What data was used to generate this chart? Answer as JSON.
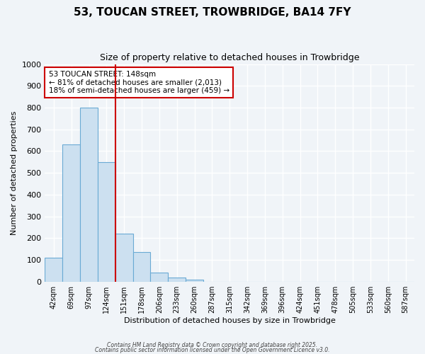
{
  "title": "53, TOUCAN STREET, TROWBRIDGE, BA14 7FY",
  "subtitle": "Size of property relative to detached houses in Trowbridge",
  "xlabel": "Distribution of detached houses by size in Trowbridge",
  "ylabel": "Number of detached properties",
  "categories": [
    "42sqm",
    "69sqm",
    "97sqm",
    "124sqm",
    "151sqm",
    "178sqm",
    "206sqm",
    "233sqm",
    "260sqm",
    "287sqm",
    "315sqm",
    "342sqm",
    "369sqm",
    "396sqm",
    "424sqm",
    "451sqm",
    "478sqm",
    "505sqm",
    "533sqm",
    "560sqm",
    "587sqm"
  ],
  "values": [
    110,
    630,
    800,
    550,
    220,
    135,
    42,
    18,
    10,
    0,
    0,
    0,
    0,
    0,
    0,
    0,
    0,
    0,
    0,
    0,
    0
  ],
  "bar_color": "#cce0f0",
  "bar_edge_color": "#6aaad4",
  "red_line_color": "#cc0000",
  "red_line_x": 3.5,
  "annotation_text": "53 TOUCAN STREET: 148sqm\n← 81% of detached houses are smaller (2,013)\n18% of semi-detached houses are larger (459) →",
  "annotation_box_facecolor": "#ffffff",
  "annotation_box_edgecolor": "#cc0000",
  "ylim": [
    0,
    1000
  ],
  "yticks": [
    0,
    100,
    200,
    300,
    400,
    500,
    600,
    700,
    800,
    900,
    1000
  ],
  "bg_color": "#f0f4f8",
  "plot_bg_color": "#f0f4f8",
  "grid_color": "#ffffff",
  "footer_line1": "Contains HM Land Registry data © Crown copyright and database right 2025.",
  "footer_line2": "Contains public sector information licensed under the Open Government Licence v3.0."
}
